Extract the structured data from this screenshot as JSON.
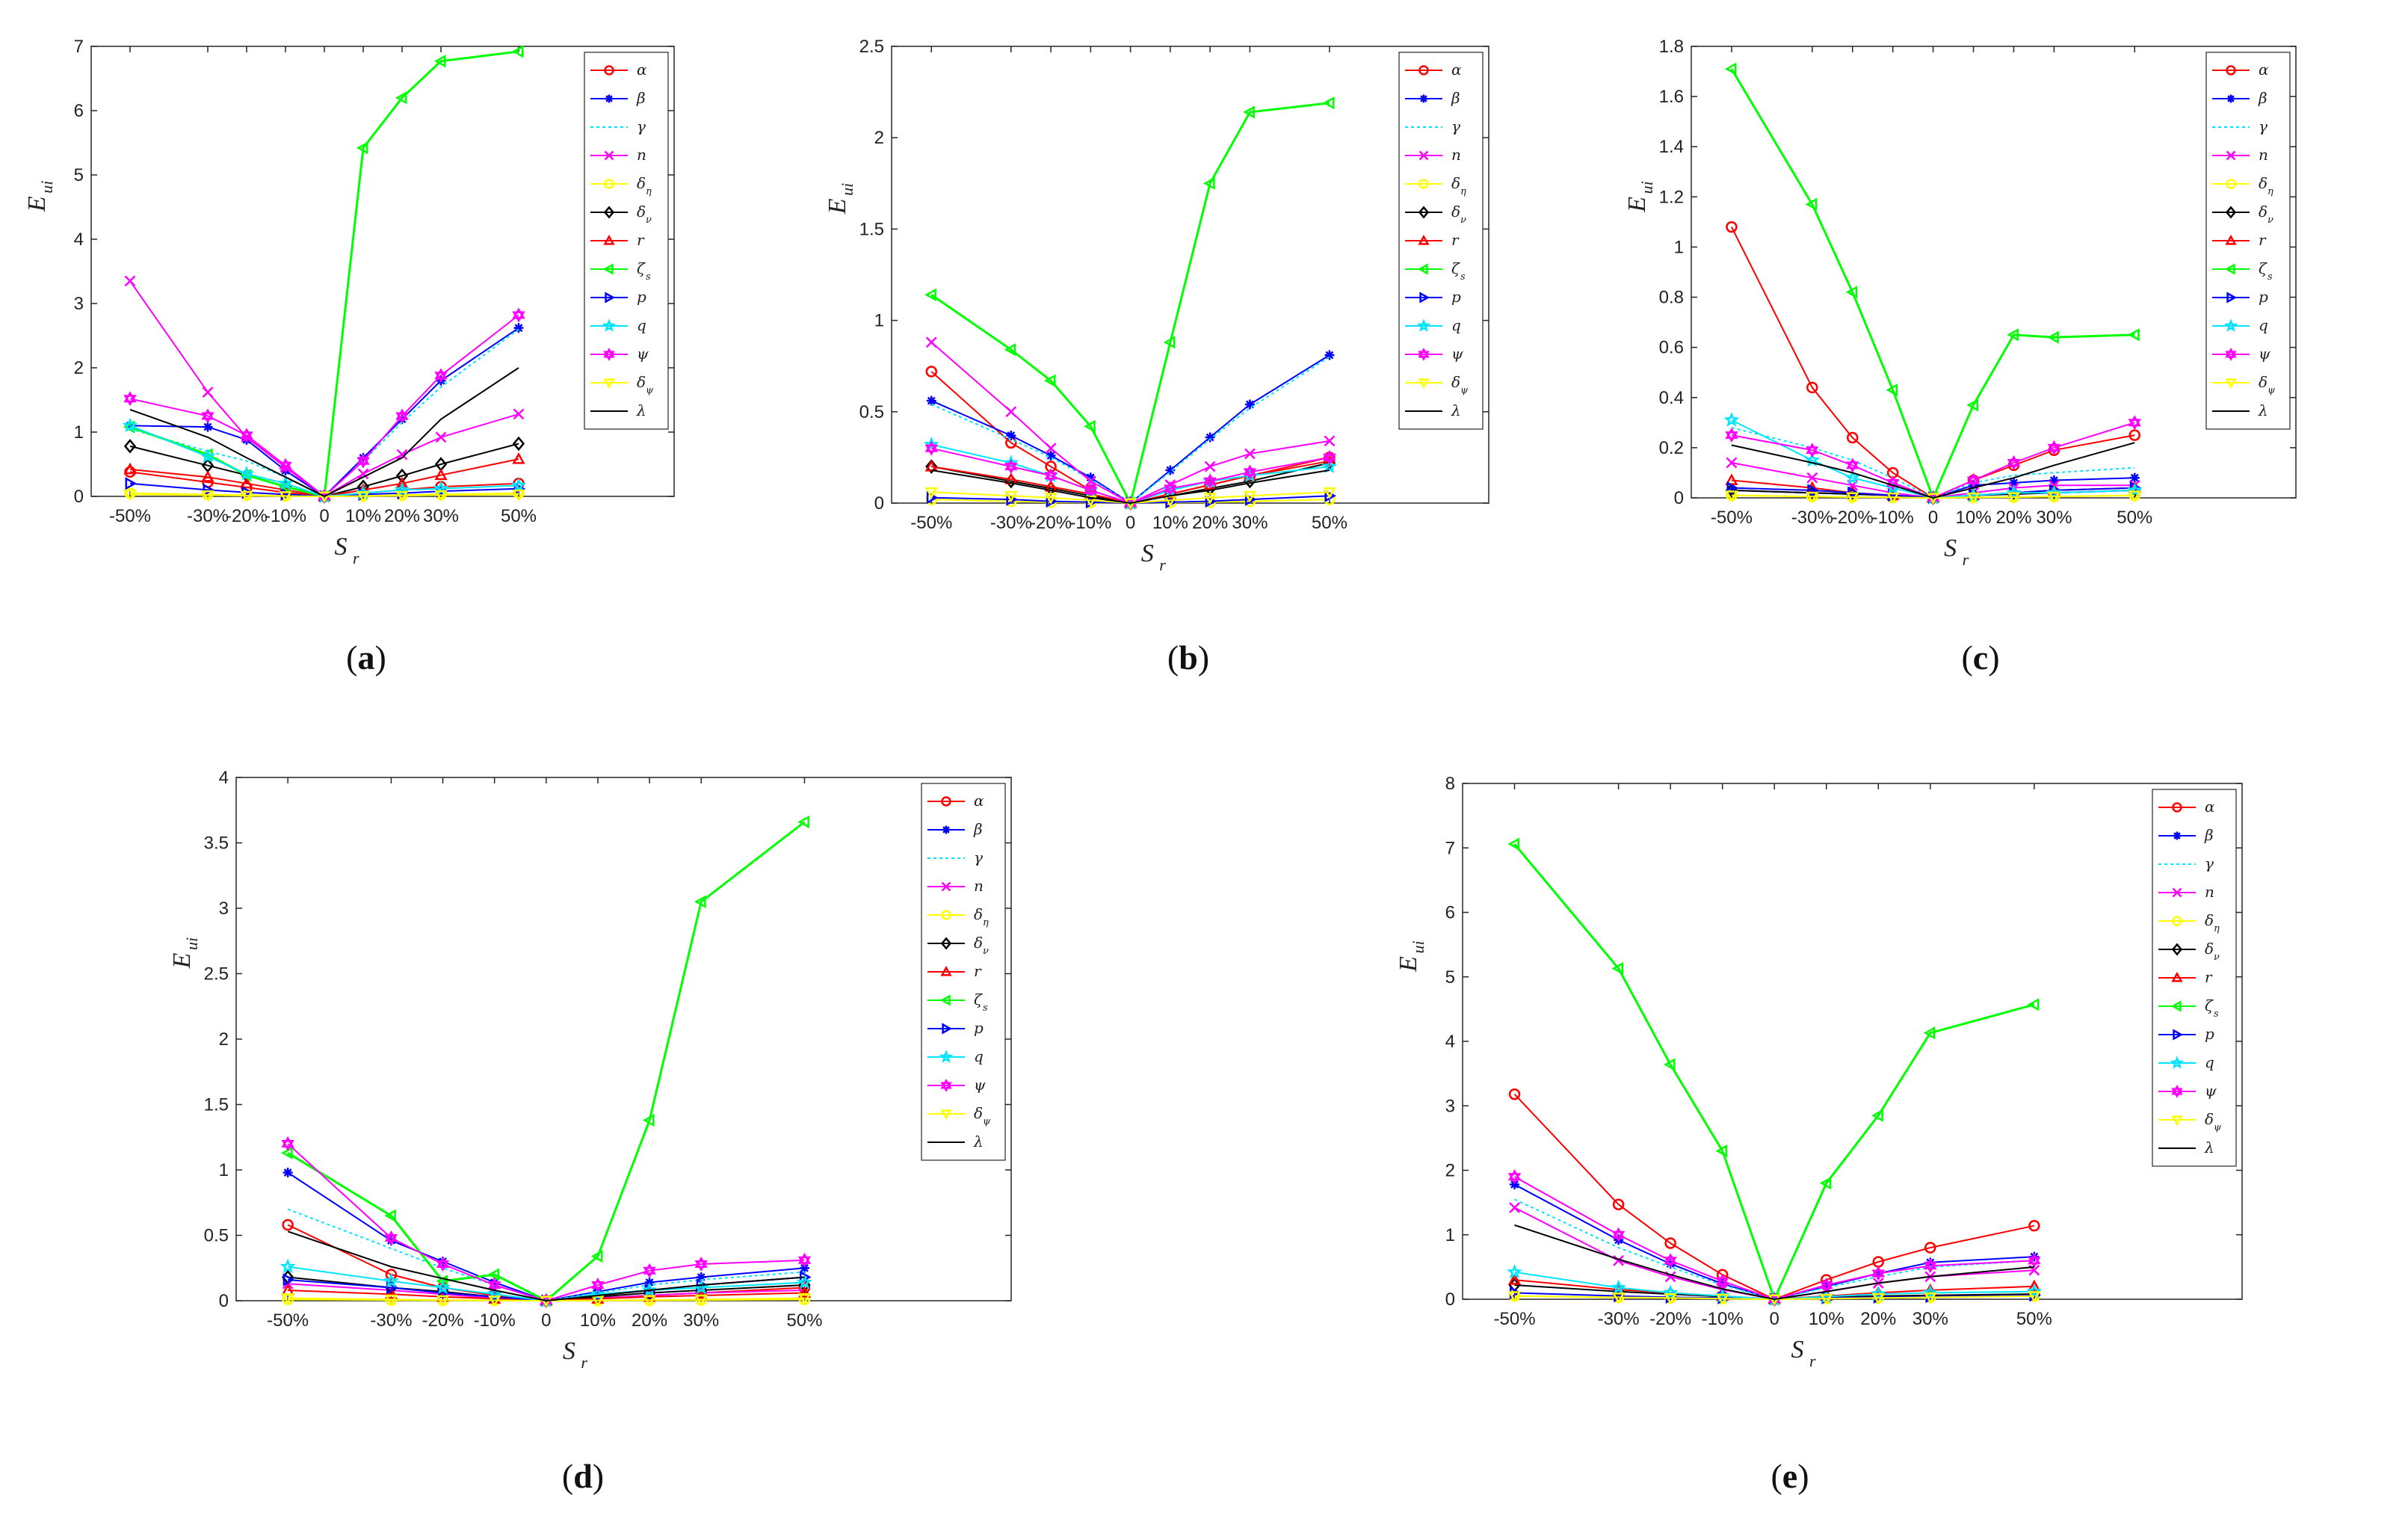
{
  "x_tick_labels": [
    "-50%",
    "-30%",
    "-20%",
    "-10%",
    "0",
    "10%",
    "20%",
    "30%",
    "50%"
  ],
  "x_axis_label": "S",
  "x_axis_label_sub": "r",
  "y_axis_label": "E",
  "y_axis_label_sub": "ui",
  "series_legend": [
    {
      "key": "alpha",
      "label": "α",
      "sub": "",
      "color": "#ff0000",
      "marker": "circle",
      "dash": ""
    },
    {
      "key": "beta",
      "label": "β",
      "sub": "",
      "color": "#0000ff",
      "marker": "star",
      "dash": ""
    },
    {
      "key": "gamma",
      "label": "γ",
      "sub": "",
      "color": "#00e5ff",
      "marker": "none",
      "dash": "4,4"
    },
    {
      "key": "n",
      "label": "n",
      "sub": "",
      "color": "#ff00ff",
      "marker": "x",
      "dash": ""
    },
    {
      "key": "delta_eta",
      "label": "δ",
      "sub": "η",
      "color": "#ffff00",
      "marker": "circle",
      "dash": ""
    },
    {
      "key": "delta_nu",
      "label": "δ",
      "sub": "ν",
      "color": "#000000",
      "marker": "diamond",
      "dash": ""
    },
    {
      "key": "r",
      "label": "r",
      "sub": "",
      "color": "#ff0000",
      "marker": "triangle-up",
      "dash": ""
    },
    {
      "key": "zeta_s",
      "label": "ζ",
      "sub": "s",
      "color": "#00ff00",
      "marker": "triangle-left",
      "dash": ""
    },
    {
      "key": "p",
      "label": "p",
      "sub": "",
      "color": "#0000ff",
      "marker": "triangle-right",
      "dash": ""
    },
    {
      "key": "q",
      "label": "q",
      "sub": "",
      "color": "#00e5ff",
      "marker": "pentagram",
      "dash": ""
    },
    {
      "key": "psi",
      "label": "ψ",
      "sub": "",
      "color": "#ff00ff",
      "marker": "hexagram",
      "dash": ""
    },
    {
      "key": "delta_psi",
      "label": "δ",
      "sub": "ψ",
      "color": "#ffff00",
      "marker": "triangle-down",
      "dash": ""
    },
    {
      "key": "lambda",
      "label": "λ",
      "sub": "",
      "color": "#000000",
      "marker": "none",
      "dash": ""
    }
  ],
  "chart_data": [
    {
      "type": "line",
      "caption": "a",
      "x": [
        -50,
        -30,
        -20,
        -10,
        0,
        10,
        20,
        30,
        50
      ],
      "ylim": [
        0,
        7
      ],
      "yticks": [
        0,
        1,
        2,
        3,
        4,
        5,
        6,
        7
      ],
      "ytick_labels": [
        "0",
        "1",
        "2",
        "3",
        "4",
        "5",
        "6",
        "7"
      ],
      "series": {
        "alpha": [
          0.38,
          0.22,
          0.14,
          0.06,
          0,
          0.05,
          0.1,
          0.15,
          0.2
        ],
        "beta": [
          1.1,
          1.08,
          0.88,
          0.4,
          0,
          0.6,
          1.2,
          1.8,
          2.62
        ],
        "gamma": [
          1.05,
          0.7,
          0.55,
          0.3,
          0,
          0.55,
          1.15,
          1.7,
          2.6
        ],
        "n": [
          3.35,
          1.62,
          0.92,
          0.45,
          0,
          0.35,
          0.65,
          0.92,
          1.28
        ],
        "delta_eta": [
          0.05,
          0.03,
          0.02,
          0.01,
          0,
          0.01,
          0.02,
          0.03,
          0.05
        ],
        "delta_nu": [
          0.78,
          0.48,
          0.33,
          0.15,
          0,
          0.15,
          0.32,
          0.5,
          0.82
        ],
        "r": [
          0.42,
          0.3,
          0.2,
          0.1,
          0,
          0.1,
          0.2,
          0.33,
          0.58
        ],
        "zeta_s": [
          1.08,
          0.65,
          0.33,
          0.15,
          0,
          5.42,
          6.2,
          6.77,
          6.92
        ],
        "p": [
          0.2,
          0.1,
          0.06,
          0.03,
          0,
          0.03,
          0.05,
          0.08,
          0.12
        ],
        "q": [
          1.1,
          0.62,
          0.35,
          0.2,
          0,
          0.05,
          0.1,
          0.12,
          0.17
        ],
        "psi": [
          1.52,
          1.25,
          0.95,
          0.48,
          0,
          0.55,
          1.25,
          1.88,
          2.82
        ],
        "delta_psi": [
          0.03,
          0.02,
          0.01,
          0.005,
          0,
          0.005,
          0.01,
          0.02,
          0.03
        ],
        "lambda": [
          1.35,
          0.92,
          0.6,
          0.3,
          0,
          0.3,
          0.6,
          1.2,
          2.0
        ]
      }
    },
    {
      "type": "line",
      "caption": "b",
      "x": [
        -50,
        -30,
        -20,
        -10,
        0,
        10,
        20,
        30,
        50
      ],
      "ylim": [
        0,
        2.5
      ],
      "yticks": [
        0,
        0.5,
        1,
        1.5,
        2,
        2.5
      ],
      "ytick_labels": [
        "0",
        "0.5",
        "1",
        "1.5",
        "2",
        "2.5"
      ],
      "series": {
        "alpha": [
          0.72,
          0.33,
          0.2,
          0.07,
          0,
          0.05,
          0.1,
          0.15,
          0.25
        ],
        "beta": [
          0.56,
          0.37,
          0.26,
          0.14,
          0,
          0.18,
          0.36,
          0.54,
          0.81
        ],
        "gamma": [
          0.54,
          0.35,
          0.25,
          0.13,
          0,
          0.17,
          0.35,
          0.52,
          0.8
        ],
        "n": [
          0.88,
          0.5,
          0.3,
          0.12,
          0,
          0.1,
          0.2,
          0.27,
          0.34
        ],
        "delta_eta": [
          0.02,
          0.01,
          0.005,
          0.003,
          0,
          0.003,
          0.005,
          0.01,
          0.02
        ],
        "delta_nu": [
          0.2,
          0.12,
          0.08,
          0.04,
          0,
          0.04,
          0.08,
          0.12,
          0.22
        ],
        "r": [
          0.2,
          0.13,
          0.09,
          0.05,
          0,
          0.05,
          0.1,
          0.15,
          0.23
        ],
        "zeta_s": [
          1.14,
          0.84,
          0.67,
          0.42,
          0,
          0.88,
          1.75,
          2.14,
          2.19
        ],
        "p": [
          0.03,
          0.02,
          0.01,
          0.005,
          0,
          0.005,
          0.01,
          0.02,
          0.04
        ],
        "q": [
          0.32,
          0.22,
          0.15,
          0.07,
          0,
          0.07,
          0.12,
          0.15,
          0.2
        ],
        "psi": [
          0.3,
          0.2,
          0.15,
          0.07,
          0,
          0.08,
          0.12,
          0.17,
          0.25
        ],
        "delta_psi": [
          0.06,
          0.04,
          0.03,
          0.015,
          0,
          0.015,
          0.03,
          0.04,
          0.06
        ],
        "lambda": [
          0.18,
          0.11,
          0.07,
          0.03,
          0,
          0.04,
          0.07,
          0.11,
          0.18
        ]
      }
    },
    {
      "type": "line",
      "caption": "c",
      "x": [
        -50,
        -30,
        -20,
        -10,
        0,
        10,
        20,
        30,
        50
      ],
      "ylim": [
        0,
        1.8
      ],
      "yticks": [
        0,
        0.2,
        0.4,
        0.6,
        0.8,
        1,
        1.2,
        1.4,
        1.6,
        1.8
      ],
      "ytick_labels": [
        "0",
        "0.2",
        "0.4",
        "0.6",
        "0.8",
        "1",
        "1.2",
        "1.4",
        "1.6",
        "1.8"
      ],
      "series": {
        "alpha": [
          1.08,
          0.44,
          0.24,
          0.1,
          0,
          0.07,
          0.13,
          0.19,
          0.25
        ],
        "beta": [
          0.03,
          0.02,
          0.015,
          0.01,
          0,
          0.05,
          0.06,
          0.07,
          0.08
        ],
        "gamma": [
          0.28,
          0.2,
          0.15,
          0.08,
          0,
          0.06,
          0.09,
          0.1,
          0.12
        ],
        "n": [
          0.14,
          0.08,
          0.05,
          0.02,
          0,
          0.02,
          0.04,
          0.05,
          0.05
        ],
        "delta_eta": [
          0.01,
          0.005,
          0.003,
          0.002,
          0,
          0.002,
          0.003,
          0.005,
          0.01
        ],
        "delta_nu": [
          0.03,
          0.02,
          0.015,
          0.01,
          0,
          0.01,
          0.015,
          0.02,
          0.03
        ],
        "r": [
          0.07,
          0.04,
          0.02,
          0.01,
          0,
          0.01,
          0.02,
          0.03,
          0.04
        ],
        "zeta_s": [
          1.71,
          1.17,
          0.82,
          0.43,
          0,
          0.37,
          0.65,
          0.64,
          0.65
        ],
        "p": [
          0.04,
          0.03,
          0.02,
          0.01,
          0,
          0.01,
          0.02,
          0.03,
          0.04
        ],
        "q": [
          0.31,
          0.15,
          0.08,
          0.04,
          0,
          0.01,
          0.02,
          0.02,
          0.03
        ],
        "psi": [
          0.25,
          0.19,
          0.13,
          0.06,
          0,
          0.07,
          0.14,
          0.2,
          0.3
        ],
        "delta_psi": [
          0.01,
          0.005,
          0.003,
          0.002,
          0,
          0.002,
          0.003,
          0.005,
          0.01
        ],
        "lambda": [
          0.21,
          0.14,
          0.1,
          0.05,
          0,
          0.04,
          0.08,
          0.13,
          0.22
        ]
      }
    },
    {
      "type": "line",
      "caption": "d",
      "x": [
        -50,
        -30,
        -20,
        -10,
        0,
        10,
        20,
        30,
        50
      ],
      "ylim": [
        0,
        4
      ],
      "yticks": [
        0,
        0.5,
        1,
        1.5,
        2,
        2.5,
        3,
        3.5,
        4
      ],
      "ytick_labels": [
        "0",
        "0.5",
        "1",
        "1.5",
        "2",
        "2.5",
        "3",
        "3.5",
        "4"
      ],
      "series": {
        "alpha": [
          0.58,
          0.2,
          0.1,
          0.04,
          0,
          0.02,
          0.04,
          0.06,
          0.1
        ],
        "beta": [
          0.98,
          0.46,
          0.3,
          0.14,
          0,
          0.07,
          0.14,
          0.18,
          0.25
        ],
        "gamma": [
          0.7,
          0.4,
          0.25,
          0.12,
          0,
          0.06,
          0.12,
          0.16,
          0.22
        ],
        "n": [
          0.13,
          0.08,
          0.05,
          0.02,
          0,
          0.02,
          0.04,
          0.06,
          0.08
        ],
        "delta_eta": [
          0.01,
          0.005,
          0.003,
          0.002,
          0,
          0.002,
          0.003,
          0.005,
          0.01
        ],
        "delta_nu": [
          0.18,
          0.1,
          0.07,
          0.03,
          0,
          0.03,
          0.06,
          0.08,
          0.12
        ],
        "r": [
          0.08,
          0.05,
          0.03,
          0.015,
          0,
          0.015,
          0.03,
          0.04,
          0.06
        ],
        "zeta_s": [
          1.13,
          0.65,
          0.15,
          0.2,
          0,
          0.34,
          1.38,
          3.05,
          3.66
        ],
        "p": [
          0.16,
          0.1,
          0.06,
          0.03,
          0,
          0.04,
          0.08,
          0.12,
          0.18
        ],
        "q": [
          0.26,
          0.15,
          0.1,
          0.05,
          0,
          0.05,
          0.08,
          0.1,
          0.14
        ],
        "psi": [
          1.2,
          0.48,
          0.28,
          0.12,
          0,
          0.12,
          0.23,
          0.28,
          0.31
        ],
        "delta_psi": [
          0.02,
          0.01,
          0.005,
          0.003,
          0,
          0.003,
          0.005,
          0.01,
          0.02
        ],
        "lambda": [
          0.53,
          0.26,
          0.17,
          0.08,
          0,
          0.04,
          0.08,
          0.12,
          0.18
        ]
      }
    },
    {
      "type": "line",
      "caption": "e",
      "x": [
        -50,
        -30,
        -20,
        -10,
        0,
        10,
        20,
        30,
        50
      ],
      "ylim": [
        0,
        8
      ],
      "yticks": [
        0,
        1,
        2,
        3,
        4,
        5,
        6,
        7,
        8
      ],
      "ytick_labels": [
        "0",
        "1",
        "2",
        "3",
        "4",
        "5",
        "6",
        "7",
        "8"
      ],
      "series": {
        "alpha": [
          3.18,
          1.47,
          0.87,
          0.38,
          0,
          0.3,
          0.58,
          0.8,
          1.14
        ],
        "beta": [
          1.78,
          0.92,
          0.55,
          0.24,
          0,
          0.2,
          0.4,
          0.57,
          0.66
        ],
        "gamma": [
          1.55,
          0.8,
          0.5,
          0.22,
          0,
          0.18,
          0.35,
          0.5,
          0.6
        ],
        "n": [
          1.42,
          0.6,
          0.35,
          0.15,
          0,
          0.12,
          0.25,
          0.35,
          0.45
        ],
        "delta_eta": [
          0.05,
          0.03,
          0.02,
          0.01,
          0,
          0.01,
          0.02,
          0.03,
          0.05
        ],
        "delta_nu": [
          0.22,
          0.12,
          0.08,
          0.04,
          0,
          0.03,
          0.05,
          0.06,
          0.08
        ],
        "r": [
          0.3,
          0.15,
          0.1,
          0.05,
          0,
          0.05,
          0.1,
          0.14,
          0.2
        ],
        "zeta_s": [
          7.06,
          5.13,
          3.64,
          2.3,
          0,
          1.8,
          2.85,
          4.13,
          4.57
        ],
        "p": [
          0.1,
          0.05,
          0.03,
          0.02,
          0,
          0.02,
          0.03,
          0.04,
          0.06
        ],
        "q": [
          0.42,
          0.18,
          0.1,
          0.05,
          0,
          0.04,
          0.08,
          0.1,
          0.12
        ],
        "psi": [
          1.9,
          1.0,
          0.6,
          0.28,
          0,
          0.22,
          0.4,
          0.52,
          0.6
        ],
        "delta_psi": [
          0.05,
          0.03,
          0.02,
          0.01,
          0,
          0.01,
          0.02,
          0.03,
          0.05
        ],
        "lambda": [
          1.15,
          0.62,
          0.38,
          0.16,
          0,
          0.12,
          0.25,
          0.35,
          0.5
        ]
      }
    }
  ]
}
